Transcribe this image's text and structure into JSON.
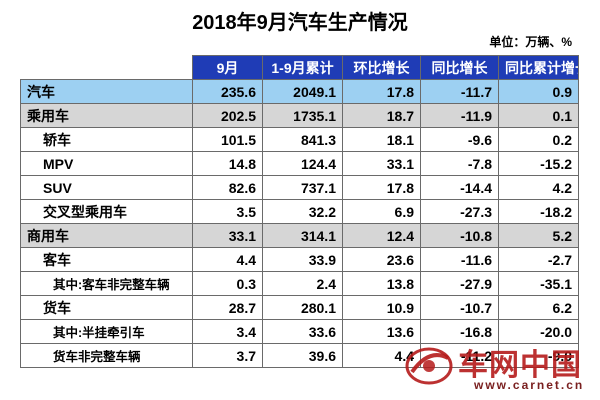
{
  "title": "2018年9月汽车生产情况",
  "unit": "单位：万辆、%",
  "headers": [
    "9月",
    "1-9月累计",
    "环比增长",
    "同比增长",
    "同比累计增长"
  ],
  "rows": [
    {
      "name": "汽车",
      "level": 0,
      "values": [
        "235.6",
        "2049.1",
        "17.8",
        "-11.7",
        "0.9"
      ]
    },
    {
      "name": "乘用车",
      "level": 1,
      "values": [
        "202.5",
        "1735.1",
        "18.7",
        "-11.9",
        "0.1"
      ]
    },
    {
      "name": "轿车",
      "level": 2,
      "values": [
        "101.5",
        "841.3",
        "18.1",
        "-9.6",
        "0.2"
      ]
    },
    {
      "name": "MPV",
      "level": 2,
      "values": [
        "14.8",
        "124.4",
        "33.1",
        "-7.8",
        "-15.2"
      ]
    },
    {
      "name": "SUV",
      "level": 2,
      "values": [
        "82.6",
        "737.1",
        "17.8",
        "-14.4",
        "4.2"
      ]
    },
    {
      "name": "交叉型乘用车",
      "level": 2,
      "values": [
        "3.5",
        "32.2",
        "6.9",
        "-27.3",
        "-18.2"
      ]
    },
    {
      "name": "商用车",
      "level": 1,
      "values": [
        "33.1",
        "314.1",
        "12.4",
        "-10.8",
        "5.2"
      ]
    },
    {
      "name": "客车",
      "level": 2,
      "values": [
        "4.4",
        "33.9",
        "23.6",
        "-11.6",
        "-2.7"
      ]
    },
    {
      "name": "其中:客车非完整车辆",
      "level": 3,
      "values": [
        "0.3",
        "2.4",
        "13.8",
        "-27.9",
        "-35.1"
      ]
    },
    {
      "name": "货车",
      "level": 2,
      "values": [
        "28.7",
        "280.1",
        "10.9",
        "-10.7",
        "6.2"
      ]
    },
    {
      "name": "其中:半挂牵引车",
      "level": 3,
      "values": [
        "3.4",
        "33.6",
        "13.6",
        "-16.8",
        "-20.0"
      ]
    },
    {
      "name": "货车非完整车辆",
      "level": 3,
      "values": [
        "3.7",
        "39.6",
        "4.4",
        "-11.2",
        "-9.0"
      ]
    }
  ],
  "watermark": {
    "name": "车网中国",
    "url": "www.carnet.cn"
  },
  "colors": {
    "header": "#1f3cb6",
    "total_row": "#9dd0f2",
    "group_row": "#d6d6d6",
    "watermark": "#b51b1b"
  }
}
